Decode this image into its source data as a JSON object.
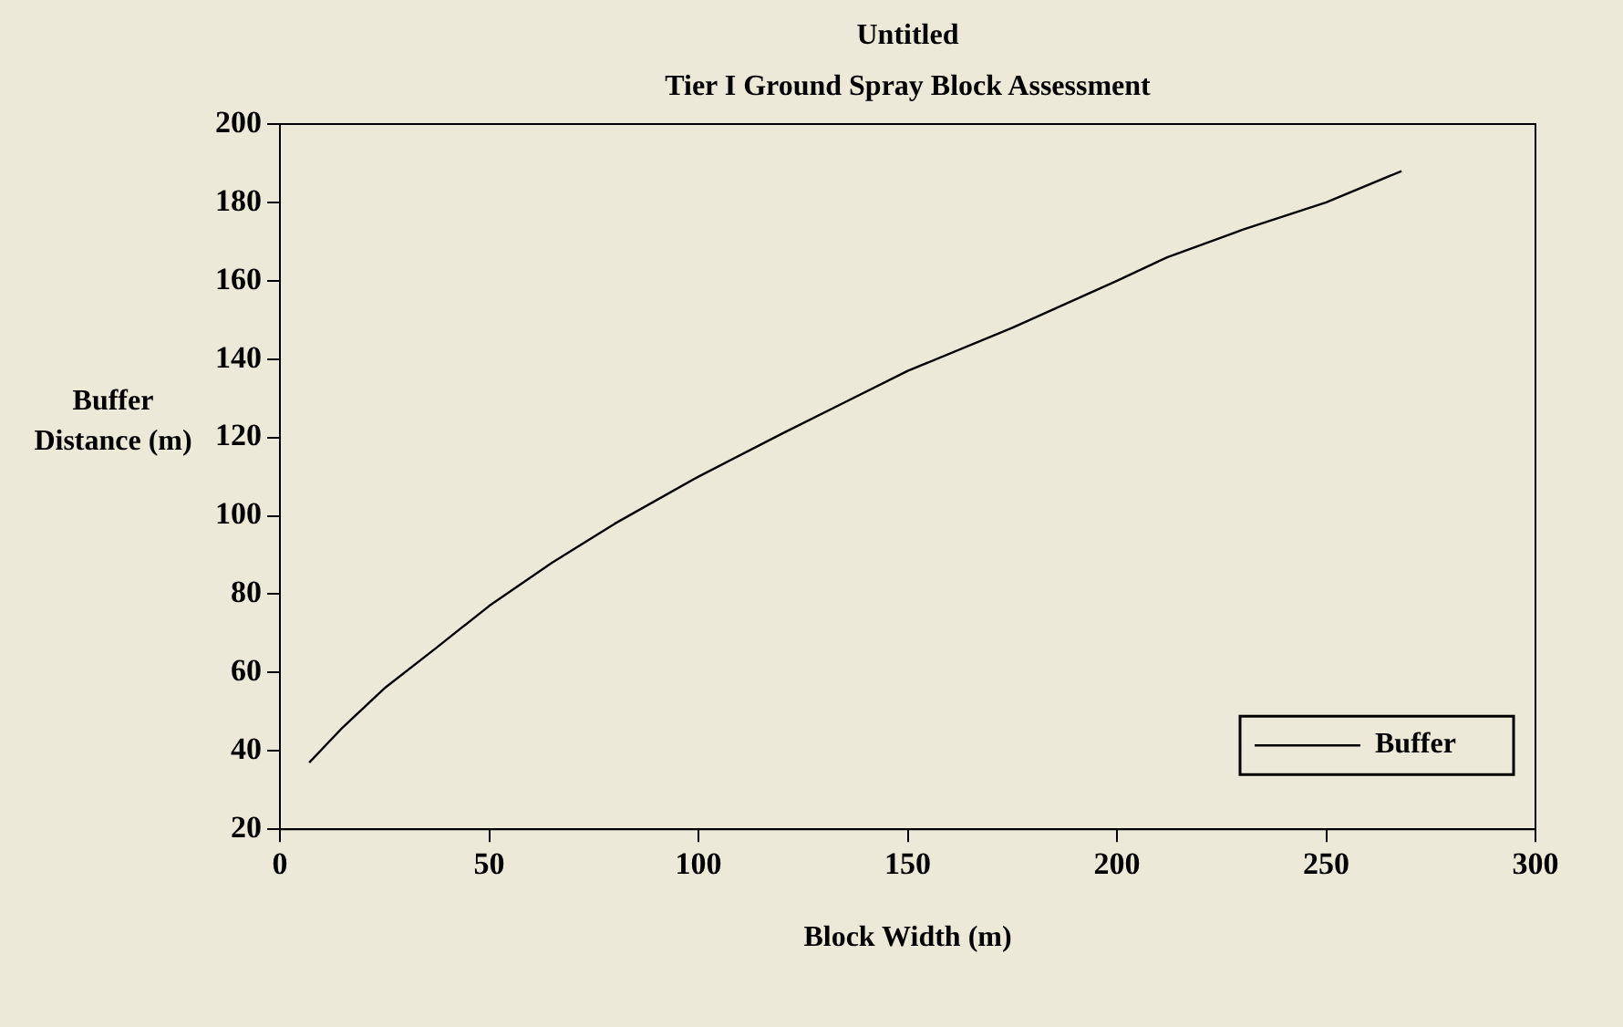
{
  "chart_data": {
    "type": "line",
    "title": "Untitled",
    "subtitle": "Tier I Ground Spray Block Assessment",
    "xlabel": "Block Width (m)",
    "ylabel": "Buffer Distance (m)",
    "x": [
      7,
      15,
      25,
      37,
      50,
      65,
      80,
      100,
      120,
      135,
      150,
      175,
      200,
      212,
      230,
      250,
      268
    ],
    "series": [
      {
        "name": "Buffer",
        "color": "#000000",
        "values": [
          37,
          46,
          56,
          66,
          77,
          88,
          98,
          110,
          121,
          129,
          137,
          148,
          160,
          166,
          173,
          180,
          188
        ]
      }
    ],
    "xlim": [
      0,
      300
    ],
    "xticks": [
      0,
      50,
      100,
      150,
      200,
      250,
      300
    ],
    "ylim": [
      20,
      200
    ],
    "yticks": [
      20,
      40,
      60,
      80,
      100,
      120,
      140,
      160,
      180,
      200
    ],
    "grid": false,
    "legend": "bottom right",
    "marker": "none",
    "line_style": "solid"
  }
}
